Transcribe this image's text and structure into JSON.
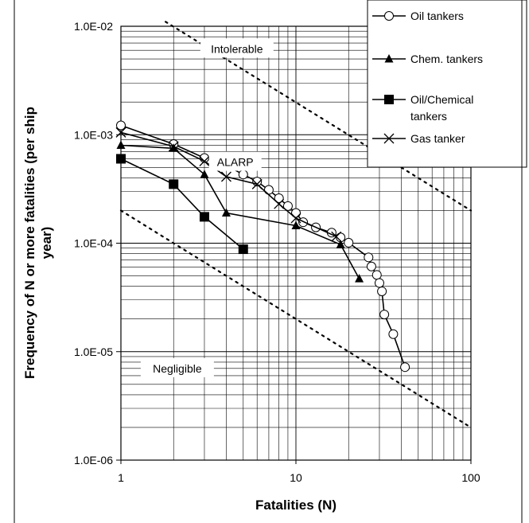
{
  "chart_data": {
    "type": "line",
    "title": "",
    "xlabel": "Fatalities (N)",
    "ylabel": "Frequency of N or more fatalities (per ship year)",
    "ylabel_lines": [
      "Frequency of N or more fatalities (per ship",
      "year)"
    ],
    "xscale": "log",
    "yscale": "log",
    "xlim": [
      1,
      100
    ],
    "ylim": [
      1e-06,
      0.01
    ],
    "x_tick_labels": [
      "1",
      "10",
      "100"
    ],
    "y_tick_labels": [
      "1.0E-06",
      "1.0E-05",
      "1.0E-04",
      "1.0E-03",
      "1.0E-02"
    ],
    "grid": true,
    "legend_position": "top-right",
    "regions": [
      {
        "label": "Intolerable",
        "x": 4.6,
        "y": 0.0062
      },
      {
        "label": "ALARP",
        "x": 4.5,
        "y": 0.00056
      },
      {
        "label": "Negligible",
        "x": 2.1,
        "y": 7e-06
      }
    ],
    "criteria_lines": [
      {
        "name": "upper",
        "points": [
          [
            1.8,
            0.011
          ],
          [
            100,
            0.0002
          ]
        ]
      },
      {
        "name": "lower",
        "points": [
          [
            1,
            0.0002
          ],
          [
            100,
            2e-06
          ]
        ]
      }
    ],
    "series": [
      {
        "name": "Oil tankers",
        "marker": "circle",
        "color": "#000000",
        "points": [
          [
            1,
            0.00122
          ],
          [
            2,
            0.00082
          ],
          [
            3,
            0.00061
          ],
          [
            4,
            0.00052
          ],
          [
            5,
            0.00043
          ],
          [
            6,
            0.00037
          ],
          [
            7,
            0.00031
          ],
          [
            8,
            0.00026
          ],
          [
            9,
            0.00022
          ],
          [
            10,
            0.00019
          ],
          [
            11,
            0.000156
          ],
          [
            13,
            0.00014
          ],
          [
            16,
            0.000125
          ],
          [
            18,
            0.000113
          ],
          [
            20,
            0.000101
          ],
          [
            26,
            7.4e-05
          ],
          [
            27,
            6.1e-05
          ],
          [
            29,
            5.1e-05
          ],
          [
            30,
            4.3e-05
          ],
          [
            31,
            3.6e-05
          ],
          [
            32,
            2.2e-05
          ],
          [
            36,
            1.45e-05
          ],
          [
            42,
            7.2e-06
          ]
        ]
      },
      {
        "name": "Chem. tankers",
        "marker": "triangle",
        "color": "#000000",
        "points": [
          [
            1,
            0.0008
          ],
          [
            2,
            0.00075
          ],
          [
            3,
            0.00043
          ],
          [
            4,
            0.00019
          ],
          [
            10,
            0.000145
          ],
          [
            18,
            9.7e-05
          ],
          [
            23,
            4.7e-05
          ]
        ]
      },
      {
        "name": "Oil/Chemical tankers",
        "legend_lines": [
          "Oil/Chemical",
          "tankers"
        ],
        "marker": "square",
        "color": "#000000",
        "points": [
          [
            1,
            0.0006
          ],
          [
            2,
            0.00035
          ],
          [
            3,
            0.000175
          ],
          [
            5,
            8.8e-05
          ]
        ]
      },
      {
        "name": "Gas tanker",
        "marker": "x",
        "color": "#000000",
        "points": [
          [
            1,
            0.00105
          ],
          [
            2,
            0.00078
          ],
          [
            3,
            0.00057
          ],
          [
            4,
            0.00041
          ],
          [
            6,
            0.00035
          ],
          [
            8,
            0.00023
          ],
          [
            10,
            0.00017
          ],
          [
            17,
            0.000115
          ]
        ]
      }
    ]
  }
}
